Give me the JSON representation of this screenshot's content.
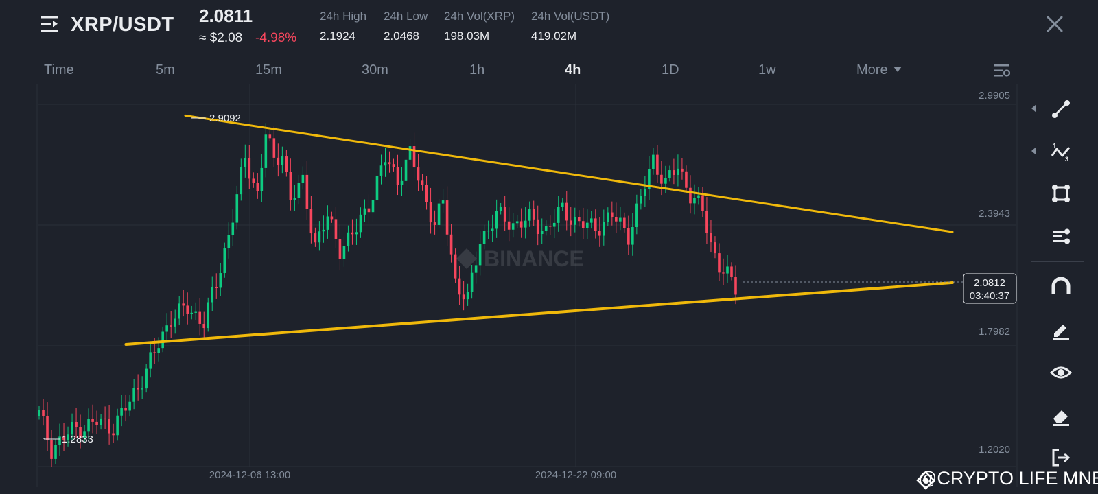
{
  "header": {
    "pair": "XRP/USDT",
    "last_price": "2.0811",
    "approx_usd": "≈ $2.08",
    "change_pct": "-4.98%",
    "stats": [
      {
        "label": "24h High",
        "value": "2.1924"
      },
      {
        "label": "24h Low",
        "value": "2.0468"
      },
      {
        "label": "24h Vol(XRP)",
        "value": "198.03M"
      },
      {
        "label": "24h Vol(USDT)",
        "value": "419.02M"
      }
    ]
  },
  "timeframes": [
    "Time",
    "5m",
    "15m",
    "30m",
    "1h",
    "4h",
    "1D",
    "1w",
    "More"
  ],
  "active_timeframe": "4h",
  "chart_data": {
    "type": "candlestick",
    "y_ticks": [
      "2.9905",
      "2.3943",
      "1.7982",
      "1.2020"
    ],
    "ylim": [
      1.202,
      2.9905
    ],
    "x_ticks": [
      "2024-12-06 13:00",
      "2024-12-22 09:00"
    ],
    "high_marker": "2.9092",
    "low_marker": "1.2833",
    "current_price": "2.0812",
    "countdown": "03:40:37",
    "watermark_logo": "BINANCE",
    "candle_count": 170,
    "anchors": [
      [
        0,
        1.46
      ],
      [
        3,
        1.29
      ],
      [
        8,
        1.38
      ],
      [
        14,
        1.42
      ],
      [
        18,
        1.4
      ],
      [
        22,
        1.52
      ],
      [
        28,
        1.76
      ],
      [
        32,
        1.94
      ],
      [
        36,
        1.98
      ],
      [
        40,
        1.92
      ],
      [
        43,
        2.1
      ],
      [
        46,
        2.35
      ],
      [
        50,
        2.72
      ],
      [
        53,
        2.55
      ],
      [
        55,
        2.85
      ],
      [
        57,
        2.7
      ],
      [
        59,
        2.76
      ],
      [
        61,
        2.52
      ],
      [
        64,
        2.6
      ],
      [
        67,
        2.3
      ],
      [
        70,
        2.43
      ],
      [
        73,
        2.28
      ],
      [
        77,
        2.37
      ],
      [
        81,
        2.55
      ],
      [
        84,
        2.72
      ],
      [
        87,
        2.62
      ],
      [
        90,
        2.74
      ],
      [
        93,
        2.57
      ],
      [
        96,
        2.4
      ],
      [
        98,
        2.5
      ],
      [
        101,
        2.12
      ],
      [
        104,
        2.02
      ],
      [
        107,
        2.32
      ],
      [
        111,
        2.44
      ],
      [
        115,
        2.4
      ],
      [
        119,
        2.42
      ],
      [
        123,
        2.37
      ],
      [
        127,
        2.47
      ],
      [
        131,
        2.4
      ],
      [
        135,
        2.38
      ],
      [
        139,
        2.44
      ],
      [
        143,
        2.35
      ],
      [
        146,
        2.52
      ],
      [
        149,
        2.72
      ],
      [
        152,
        2.6
      ],
      [
        155,
        2.68
      ],
      [
        158,
        2.55
      ],
      [
        161,
        2.46
      ],
      [
        163,
        2.3
      ],
      [
        165,
        2.2
      ],
      [
        167,
        2.14
      ],
      [
        169,
        2.08
      ]
    ],
    "trendlines": [
      {
        "name": "upper",
        "from": [
          0.16,
          2.935
        ],
        "to": [
          1.0,
          2.36
        ]
      },
      {
        "name": "lower",
        "from": [
          0.095,
          1.805
        ],
        "to": [
          1.0,
          2.11
        ]
      }
    ],
    "colors": {
      "up": "#0ecb81",
      "down": "#f6465d",
      "trend": "#f0b90b",
      "grid": "#2b3039",
      "axis_text": "#848e9c"
    }
  },
  "toolbar": {
    "tools": [
      "trend-line-icon",
      "fib-wave-icon",
      "rectangle-icon",
      "multi-line-icon",
      "magnet-icon",
      "pencil-icon",
      "eye-icon",
      "eraser-icon",
      "exit-icon"
    ]
  },
  "watermark": {
    "text": "@CRYPTO LIFE MNE"
  }
}
